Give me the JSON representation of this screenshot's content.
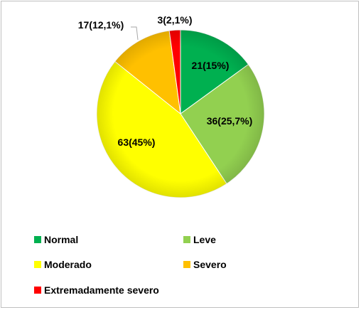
{
  "chart_data": {
    "type": "pie",
    "title": "",
    "categories": [
      "Normal",
      "Leve",
      "Moderado",
      "Severo",
      "Extremadamente severo"
    ],
    "values": [
      21,
      36,
      63,
      17,
      3
    ],
    "labels": [
      "21(15%)",
      "36(25,7%)",
      "63(45%)",
      "17(12,1%)",
      "3(2,1%)"
    ],
    "colors": [
      "#00b050",
      "#92d050",
      "#ffff00",
      "#ffc000",
      "#ff0000"
    ],
    "legend_position": "bottom"
  }
}
